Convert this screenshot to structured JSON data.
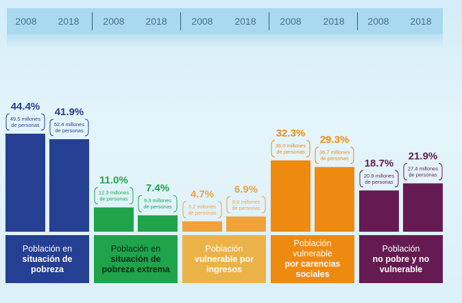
{
  "header": {
    "years": [
      "2008",
      "2018",
      "2008",
      "2018",
      "2008",
      "2018",
      "2008",
      "2018",
      "2008",
      "2018"
    ]
  },
  "colors": {
    "pobreza": "#253f92",
    "extrema": "#1fa34b",
    "ingresos": "#f2a23a",
    "carencias": "#ef8a10",
    "no_pobre": "#651b52",
    "header": "#a8d9ef"
  },
  "groups": [
    {
      "label_line1": "Población en",
      "label_line2": "situación de pobreza",
      "box_color": "#253f92",
      "text_color": "#ffffff"
    },
    {
      "label_line1": "Población en",
      "label_line2": "situación de pobreza extrema",
      "box_color": "#1fa34b",
      "text_color": "#0b2a16"
    },
    {
      "label_line1": "Población",
      "label_line2": "vulnerable por ingresos",
      "box_color": "#ebb248",
      "text_color": "#ffffff"
    },
    {
      "label_line1": "Población vulnerable",
      "label_line2": "por carencias sociales",
      "box_color": "#ef8a10",
      "text_color": "#ffffff"
    },
    {
      "label_line1": "Población",
      "label_line2": "no pobre y no vulnerable",
      "box_color": "#651b52",
      "text_color": "#ffffff"
    }
  ],
  "chart_data": {
    "type": "bar",
    "categories": [
      "Población en situación de pobreza",
      "Población en situación de pobreza extrema",
      "Población vulnerable por ingresos",
      "Población vulnerable por carencias sociales",
      "Población no pobre y no vulnerable"
    ],
    "series": [
      {
        "name": "2008",
        "values": [
          44.4,
          11.0,
          4.7,
          32.3,
          18.7
        ]
      },
      {
        "name": "2018",
        "values": [
          41.9,
          7.4,
          6.9,
          29.3,
          21.9
        ]
      }
    ],
    "value_labels": [
      [
        "44.4%",
        "41.9%"
      ],
      [
        "11.0%",
        "7.4%"
      ],
      [
        "4.7%",
        "6.9%"
      ],
      [
        "32.3%",
        "29.3%"
      ],
      [
        "18.7%",
        "21.9%"
      ]
    ],
    "millions": [
      [
        [
          "49.5 millones",
          "de personas"
        ],
        [
          "52.4 millones",
          "de personas"
        ]
      ],
      [
        [
          "12.3 millones",
          "de personas"
        ],
        [
          "9.3 millones",
          "de personas"
        ]
      ],
      [
        [
          "5.2 millones",
          "de personas"
        ],
        [
          "8.6 millones",
          "de personas"
        ]
      ],
      [
        [
          "36.0 millones",
          "de personas"
        ],
        [
          "36.7 millones",
          "de personas"
        ]
      ],
      [
        [
          "20.9 millones",
          "de personas"
        ],
        [
          "27.4 millones",
          "de personas"
        ]
      ]
    ],
    "bar_colors": [
      "#253f92",
      "#1fa34b",
      "#f2a23a",
      "#ef8a10",
      "#651b52"
    ],
    "ylim": [
      0,
      50
    ],
    "grid": false,
    "title": "",
    "xlabel": "",
    "ylabel": ""
  }
}
